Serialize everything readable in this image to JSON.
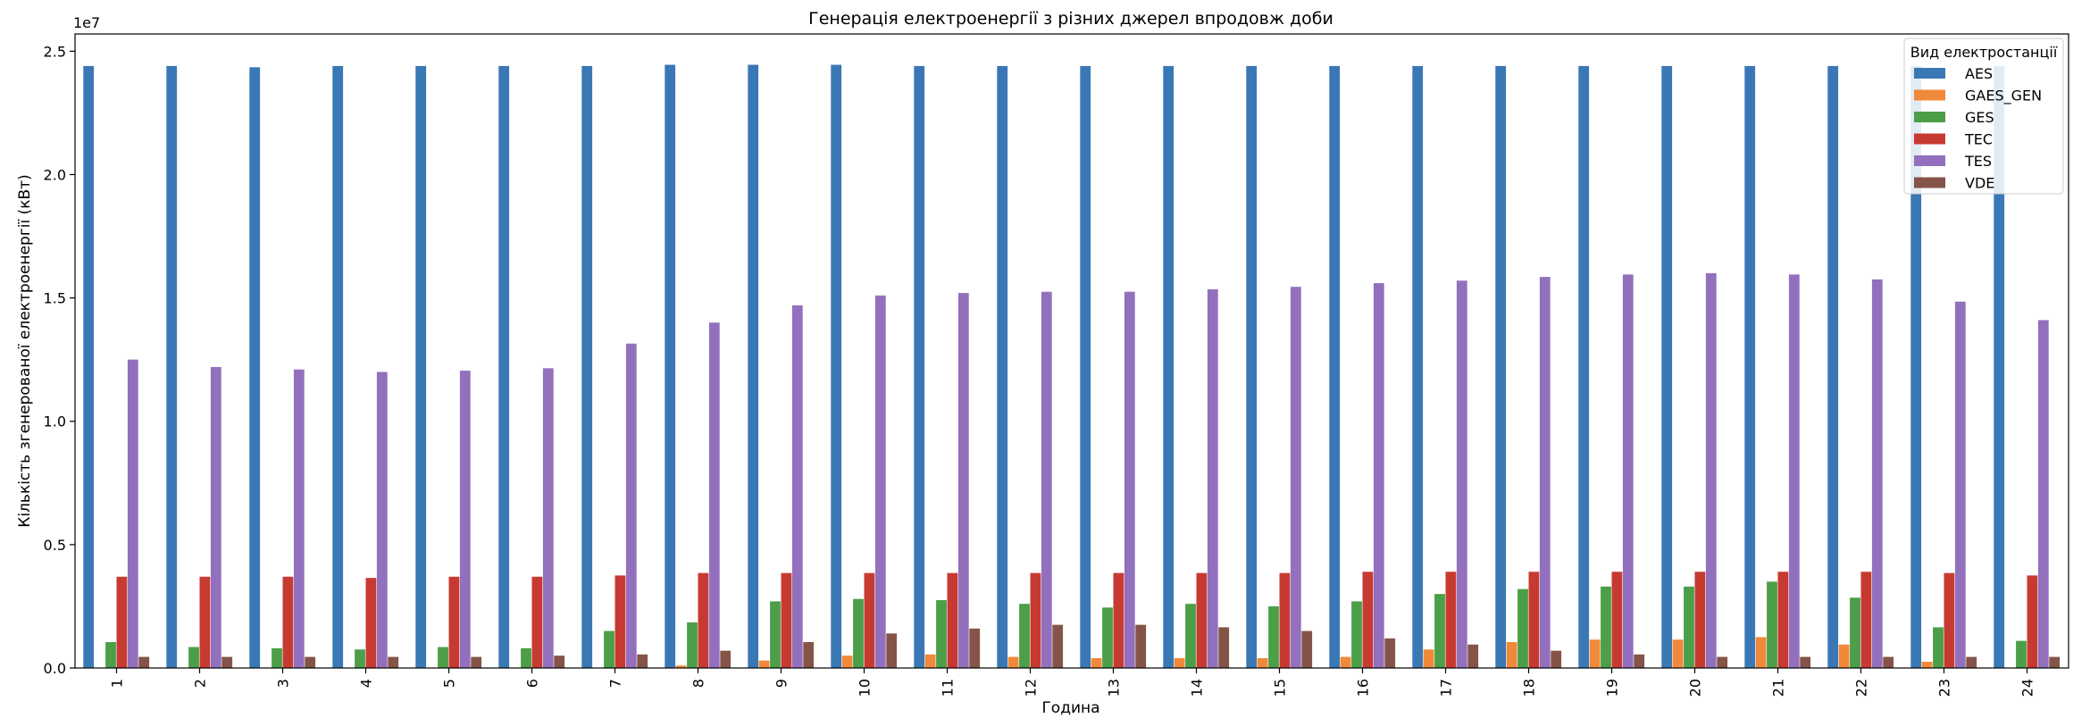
{
  "chart_data": {
    "type": "bar",
    "title": "Генерація електроенергії з різних джерел впродовж доби",
    "xlabel": "Година",
    "ylabel": "Кількість згенерованої електроенергії (кВт)",
    "y_scale_label": "1e7",
    "ylim": [
      0,
      25700000
    ],
    "y_ticks": [
      {
        "value": 0,
        "label": "0.0"
      },
      {
        "value": 5000000,
        "label": "0.5"
      },
      {
        "value": 10000000,
        "label": "1.0"
      },
      {
        "value": 15000000,
        "label": "1.5"
      },
      {
        "value": 20000000,
        "label": "2.0"
      },
      {
        "value": 25000000,
        "label": "2.5"
      }
    ],
    "grid": false,
    "legend": {
      "title": "Вид електростанції",
      "placement": "top-right"
    },
    "categories": [
      "1",
      "2",
      "3",
      "4",
      "5",
      "6",
      "7",
      "8",
      "9",
      "10",
      "11",
      "12",
      "13",
      "14",
      "15",
      "16",
      "17",
      "18",
      "19",
      "20",
      "21",
      "22",
      "23",
      "24"
    ],
    "series": [
      {
        "name": "AES",
        "color": "#3a78b5",
        "values": [
          24400000,
          24400000,
          24350000,
          24400000,
          24400000,
          24400000,
          24400000,
          24450000,
          24450000,
          24450000,
          24400000,
          24400000,
          24400000,
          24400000,
          24400000,
          24400000,
          24400000,
          24400000,
          24400000,
          24400000,
          24400000,
          24400000,
          24400000,
          24400000
        ]
      },
      {
        "name": "GAES_GEN",
        "color": "#f0893a",
        "values": [
          0,
          0,
          0,
          0,
          0,
          0,
          0,
          100000,
          300000,
          500000,
          550000,
          450000,
          400000,
          400000,
          400000,
          450000,
          750000,
          1050000,
          1150000,
          1150000,
          1250000,
          950000,
          250000,
          0
        ]
      },
      {
        "name": "GES",
        "color": "#4c9e48",
        "values": [
          1050000,
          850000,
          800000,
          750000,
          850000,
          800000,
          1500000,
          1850000,
          2700000,
          2800000,
          2750000,
          2600000,
          2450000,
          2600000,
          2500000,
          2700000,
          3000000,
          3200000,
          3300000,
          3300000,
          3500000,
          2850000,
          1650000,
          1100000
        ]
      },
      {
        "name": "TEC",
        "color": "#c73a32",
        "values": [
          3700000,
          3700000,
          3700000,
          3650000,
          3700000,
          3700000,
          3750000,
          3850000,
          3850000,
          3850000,
          3850000,
          3850000,
          3850000,
          3850000,
          3850000,
          3900000,
          3900000,
          3900000,
          3900000,
          3900000,
          3900000,
          3900000,
          3850000,
          3750000
        ]
      },
      {
        "name": "TES",
        "color": "#9370bd",
        "values": [
          12500000,
          12200000,
          12100000,
          12000000,
          12050000,
          12150000,
          13150000,
          14000000,
          14700000,
          15100000,
          15200000,
          15250000,
          15250000,
          15350000,
          15450000,
          15600000,
          15700000,
          15850000,
          15950000,
          16000000,
          15950000,
          15750000,
          14850000,
          14100000
        ]
      },
      {
        "name": "VDE",
        "color": "#855448",
        "values": [
          450000,
          450000,
          450000,
          450000,
          450000,
          500000,
          550000,
          700000,
          1050000,
          1400000,
          1600000,
          1750000,
          1750000,
          1650000,
          1500000,
          1200000,
          950000,
          700000,
          550000,
          450000,
          450000,
          450000,
          450000,
          450000
        ]
      }
    ]
  }
}
